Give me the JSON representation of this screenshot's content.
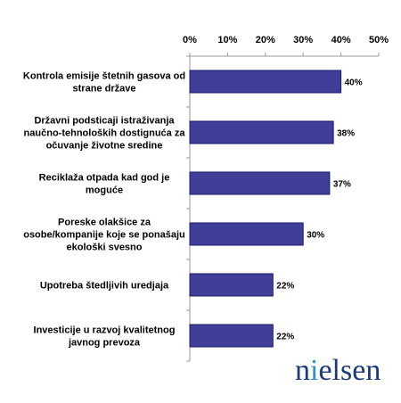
{
  "chart_data": {
    "type": "bar",
    "orientation": "horizontal",
    "categories": [
      [
        "Kontrola emisije štetnih gasova od",
        "strane države"
      ],
      [
        "Državni podsticaji istraživanja",
        "naučno-tehnoloških dostignuća za",
        "očuvanje životne sredine"
      ],
      [
        "Reciklaža otpada kad god je",
        "moguće"
      ],
      [
        "Poreske olakšice za",
        "osobe/kompanije koje se ponašaju",
        "ekološki svesno"
      ],
      [
        "Upotreba štedljivih uredjaja"
      ],
      [
        "Investicije u razvoj kvalitetnog",
        "javnog prevoza"
      ]
    ],
    "values": [
      40,
      38,
      37,
      30,
      22,
      22
    ],
    "data_labels": [
      "40%",
      "38%",
      "37%",
      "30%",
      "22%",
      "22%"
    ],
    "x_ticks": [
      "0%",
      "10%",
      "20%",
      "30%",
      "40%",
      "50%"
    ],
    "xlim": [
      0,
      50
    ],
    "axis_position": "top",
    "grid": false,
    "bar_color": "#3f3f99",
    "bar_border": "#1a1a66"
  },
  "logo": {
    "text": "nielsen",
    "accent_color": "#2f8fd0",
    "text_color": "#1d3a78"
  }
}
